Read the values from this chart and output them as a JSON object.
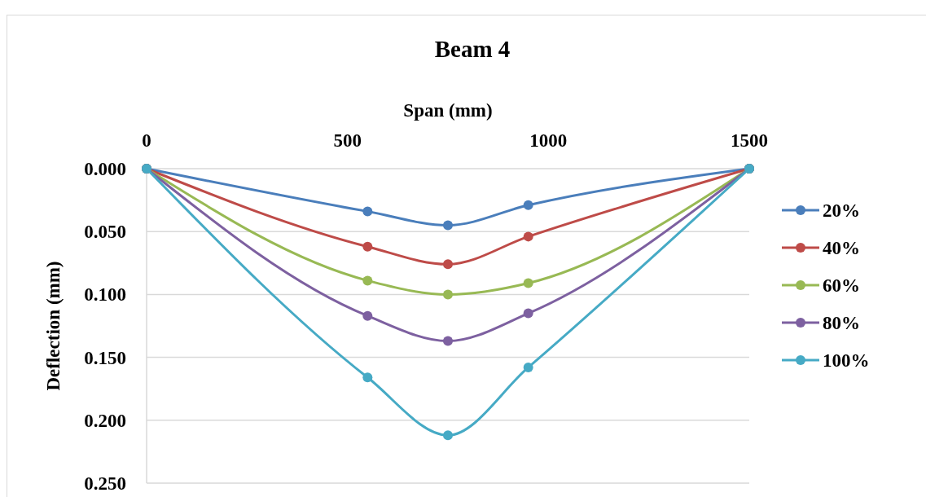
{
  "chart_data": {
    "type": "line",
    "title": "Beam 4",
    "xlabel": "Span (mm)",
    "ylabel": "Deflection (mm)",
    "xlim": [
      0,
      1500
    ],
    "xticks": [
      0,
      500,
      1000,
      1500
    ],
    "ylim": [
      0.25,
      0
    ],
    "yticks": [
      {
        "value": 0,
        "label": "0.000"
      },
      {
        "value": 0.05,
        "label": "0.050"
      },
      {
        "value": 0.1,
        "label": "0.100"
      },
      {
        "value": 0.15,
        "label": "0.150"
      },
      {
        "value": 0.2,
        "label": "0.200"
      },
      {
        "value": 0.25,
        "label": "0.250"
      }
    ],
    "x": [
      0,
      550,
      750,
      950,
      1500
    ],
    "series": [
      {
        "name": "20%",
        "color": "#4a7ebb",
        "values": [
          0,
          0.034,
          0.045,
          0.029,
          0
        ]
      },
      {
        "name": "40%",
        "color": "#be4b48",
        "values": [
          0,
          0.062,
          0.076,
          0.054,
          0
        ]
      },
      {
        "name": "60%",
        "color": "#98b954",
        "values": [
          0,
          0.089,
          0.1,
          0.091,
          0
        ]
      },
      {
        "name": "80%",
        "color": "#7d60a0",
        "values": [
          0,
          0.117,
          0.137,
          0.115,
          0
        ]
      },
      {
        "name": "100%",
        "color": "#46aac5",
        "values": [
          0,
          0.166,
          0.212,
          0.158,
          0
        ]
      }
    ],
    "grid": "y",
    "legend": "right",
    "marker": "circle",
    "line_style": "solid"
  }
}
